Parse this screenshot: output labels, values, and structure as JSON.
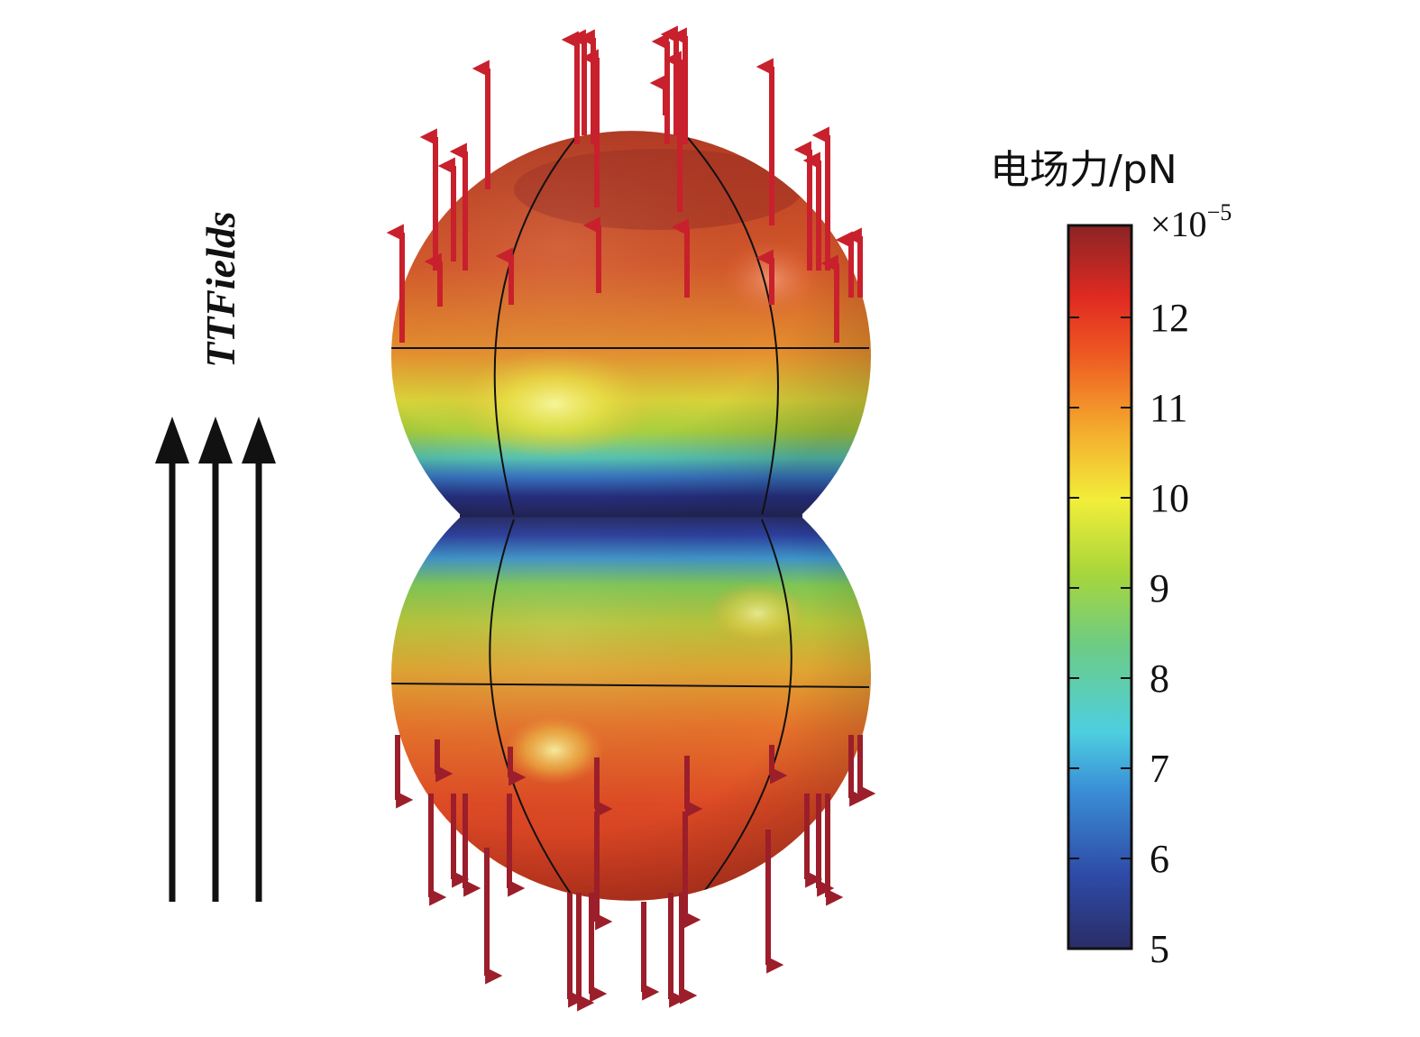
{
  "field_label": "TTFields",
  "colorbar": {
    "title": "电场力/pN",
    "multiplier": "×10",
    "exponent": "−5",
    "ticks": [
      "12",
      "11",
      "10",
      "9",
      "8",
      "7",
      "6",
      "5"
    ]
  },
  "colors": {
    "force_arrow": "#c8202c",
    "field_arrow": "#111111",
    "colormap": [
      "#2a2d66",
      "#2e4aa6",
      "#3a8fd6",
      "#4ecfe0",
      "#6dcc84",
      "#a8d63a",
      "#f2ee3a",
      "#f4a92d",
      "#ee5a22",
      "#e02a22",
      "#8b2425"
    ]
  }
}
